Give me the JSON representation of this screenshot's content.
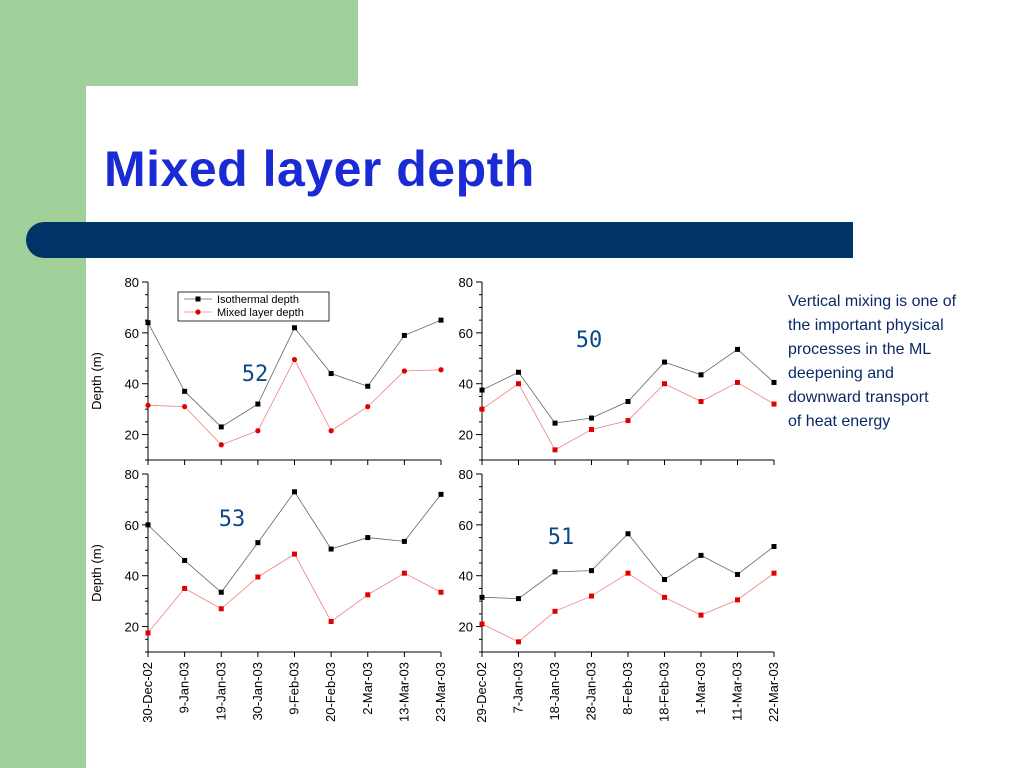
{
  "slide": {
    "title": "Mixed layer depth",
    "description": "Vertical mixing is one of\n the important physical\n processes in the ML\n deepening and\n downward transport\nof heat energy",
    "colors": {
      "title": "#1a2ad4",
      "accent_bar": "#003366",
      "green": "#a0d09a",
      "annotation": "#0a4a8a"
    }
  },
  "chart_data": [
    {
      "type": "line",
      "annotation": "52",
      "ylabel": "Depth (m)",
      "ylim": [
        10,
        80
      ],
      "yticks": [
        20,
        40,
        60,
        80
      ],
      "categories": [
        "30-Dec-02",
        "9-Jan-03",
        "19-Jan-03",
        "30-Jan-03",
        "9-Feb-03",
        "20-Feb-03",
        "2-Mar-03",
        "13-Mar-03",
        "23-Mar-03"
      ],
      "x_labels_shown": false,
      "legend": {
        "placement": "top-left"
      },
      "series": [
        {
          "name": "Isothermal depth",
          "color": "#000000",
          "marker": "square",
          "values": [
            64,
            37,
            23,
            32,
            62,
            44,
            39,
            59,
            65
          ]
        },
        {
          "name": "Mixed layer depth",
          "color": "#e00000",
          "marker": "circle",
          "values": [
            31.5,
            31,
            16,
            21.5,
            49.5,
            21.5,
            31,
            45,
            45.5
          ]
        }
      ]
    },
    {
      "type": "line",
      "annotation": "50",
      "ylabel": "",
      "ylim": [
        10,
        80
      ],
      "yticks": [
        20,
        40,
        60,
        80
      ],
      "categories": [
        "29-Dec-02",
        "7-Jan-03",
        "18-Jan-03",
        "28-Jan-03",
        "8-Feb-03",
        "18-Feb-03",
        "1-Mar-03",
        "11-Mar-03",
        "22-Mar-03"
      ],
      "x_labels_shown": false,
      "series": [
        {
          "name": "Isothermal depth",
          "color": "#000000",
          "marker": "square",
          "values": [
            37.5,
            44.5,
            24.5,
            26.5,
            33,
            48.5,
            43.5,
            53.5,
            40.5
          ]
        },
        {
          "name": "Mixed layer depth",
          "color": "#e00000",
          "marker": "square",
          "values": [
            30,
            40,
            14,
            22,
            25.5,
            40,
            33,
            40.5,
            32
          ]
        }
      ]
    },
    {
      "type": "line",
      "annotation": "53",
      "ylabel": "Depth (m)",
      "ylim": [
        10,
        80
      ],
      "yticks": [
        20,
        40,
        60,
        80
      ],
      "categories": [
        "30-Dec-02",
        "9-Jan-03",
        "19-Jan-03",
        "30-Jan-03",
        "9-Feb-03",
        "20-Feb-03",
        "2-Mar-03",
        "13-Mar-03",
        "23-Mar-03"
      ],
      "x_labels_shown": true,
      "series": [
        {
          "name": "Isothermal depth",
          "color": "#000000",
          "marker": "square",
          "values": [
            60,
            46,
            33.5,
            53,
            73,
            50.5,
            55,
            53.5,
            72
          ]
        },
        {
          "name": "Mixed layer depth",
          "color": "#e00000",
          "marker": "square",
          "values": [
            17.5,
            35,
            27,
            39.5,
            48.5,
            22,
            32.5,
            41,
            33.5
          ]
        }
      ]
    },
    {
      "type": "line",
      "annotation": "51",
      "ylabel": "",
      "ylim": [
        10,
        80
      ],
      "yticks": [
        20,
        40,
        60,
        80
      ],
      "categories": [
        "29-Dec-02",
        "7-Jan-03",
        "18-Jan-03",
        "28-Jan-03",
        "8-Feb-03",
        "18-Feb-03",
        "1-Mar-03",
        "11-Mar-03",
        "22-Mar-03"
      ],
      "x_labels_shown": true,
      "series": [
        {
          "name": "Isothermal depth",
          "color": "#000000",
          "marker": "square",
          "values": [
            31.5,
            31,
            41.5,
            42,
            56.5,
            38.5,
            48,
            40.5,
            51.5
          ]
        },
        {
          "name": "Mixed layer depth",
          "color": "#e00000",
          "marker": "square",
          "values": [
            21,
            14,
            26,
            32,
            41,
            31.5,
            24.5,
            30.5,
            41
          ]
        }
      ]
    }
  ]
}
